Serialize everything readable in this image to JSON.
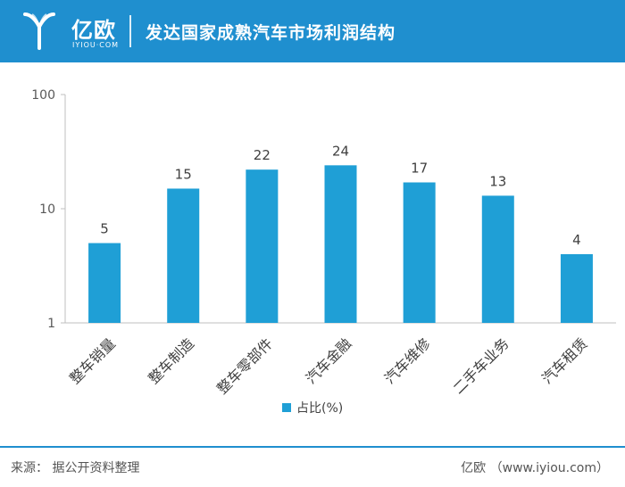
{
  "header": {
    "brand_name": "亿欧",
    "brand_sub": "IYIOU·COM",
    "title": "发达国家成熟汽车市场利润结构"
  },
  "footer": {
    "source": "来源：  据公开资料整理",
    "credit": "亿欧  （www.iyiou.com）"
  },
  "colors": {
    "header_bg": "#1f8fcf",
    "bar": "#1f9fd6",
    "axis": "#bfbfbf"
  },
  "chart_data": {
    "type": "bar",
    "y_scale": "log",
    "ylim": [
      1,
      100
    ],
    "y_ticks": [
      "1",
      "10",
      "100"
    ],
    "categories": [
      "整车销量",
      "整车制造",
      "整车零部件",
      "汽车金融",
      "汽车维修",
      "二手车业务",
      "汽车租赁"
    ],
    "series": [
      {
        "name": "占比(%)",
        "values": [
          5,
          15,
          22,
          24,
          17,
          13,
          4
        ]
      }
    ],
    "data_labels": [
      "5",
      "15",
      "22",
      "24",
      "17",
      "13",
      "4"
    ],
    "legend_position": "bottom",
    "grid": false,
    "xlabel": "",
    "ylabel": ""
  }
}
